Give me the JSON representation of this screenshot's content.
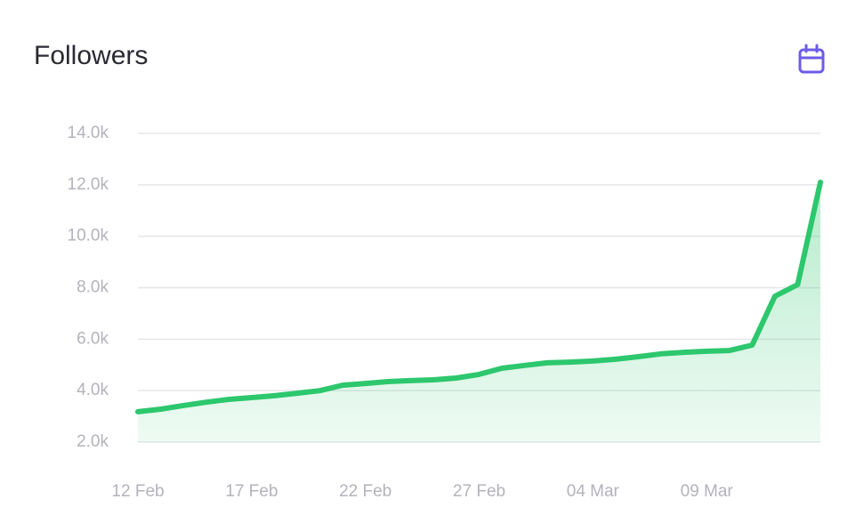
{
  "chart_data": {
    "type": "line",
    "title": "Followers",
    "categories": [
      "12 Feb",
      null,
      null,
      null,
      null,
      "17 Feb",
      null,
      null,
      null,
      null,
      "22 Feb",
      null,
      null,
      null,
      null,
      "27 Feb",
      null,
      null,
      null,
      null,
      "04 Mar",
      null,
      null,
      null,
      null,
      "09 Mar",
      null,
      null,
      null,
      null,
      null
    ],
    "series": [
      {
        "name": "Followers",
        "color": "#2dc76d",
        "values": [
          3180,
          3280,
          3420,
          3550,
          3660,
          3730,
          3800,
          3900,
          4000,
          4210,
          4280,
          4350,
          4390,
          4420,
          4490,
          4630,
          4870,
          4980,
          5080,
          5110,
          5150,
          5220,
          5320,
          5430,
          5490,
          5530,
          5560,
          5770,
          7670,
          8120,
          12100
        ]
      }
    ],
    "ylim": [
      2000,
      14000
    ],
    "yticks": [
      {
        "value": 2000,
        "label": "2.0k"
      },
      {
        "value": 4000,
        "label": "4.0k"
      },
      {
        "value": 6000,
        "label": "6.0k"
      },
      {
        "value": 8000,
        "label": "8.0k"
      },
      {
        "value": 10000,
        "label": "10.0k"
      },
      {
        "value": 12000,
        "label": "12.0k"
      },
      {
        "value": 14000,
        "label": "14.0k"
      }
    ],
    "grid": true
  }
}
